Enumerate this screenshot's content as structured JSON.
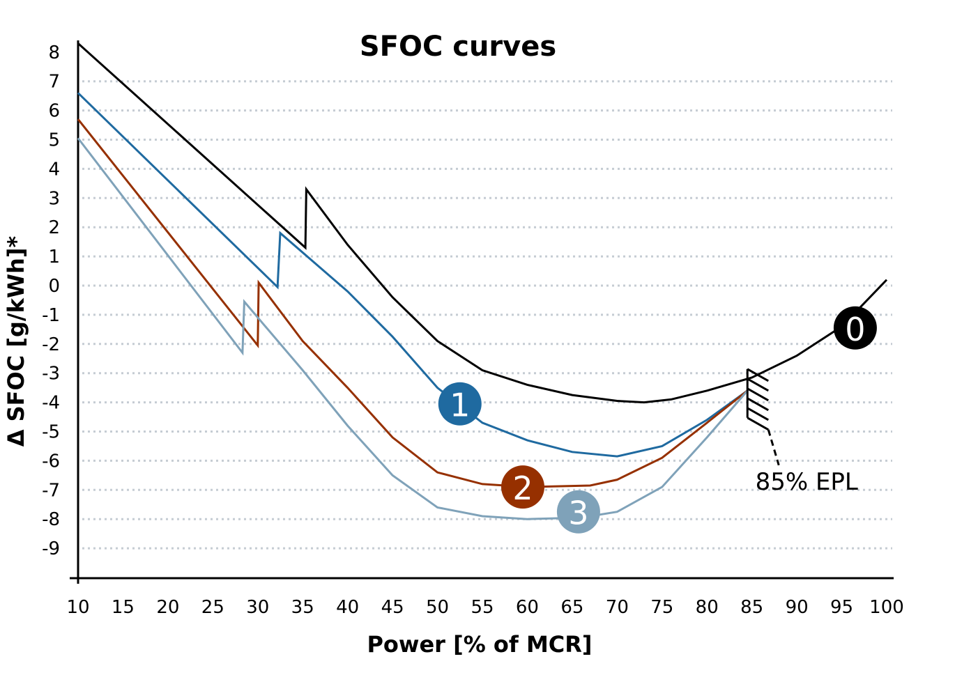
{
  "chart_data": {
    "type": "line",
    "title": "SFOC curves",
    "xlabel": "Power [% of MCR]",
    "ylabel": "Δ SFOC [g/kWh]*",
    "xlim": [
      10,
      100
    ],
    "ylim": [
      -10,
      8
    ],
    "x_ticks": [
      10,
      15,
      20,
      25,
      30,
      35,
      40,
      45,
      50,
      55,
      60,
      65,
      70,
      75,
      80,
      85,
      90,
      95,
      100
    ],
    "y_ticks": [
      8,
      7,
      6,
      5,
      4,
      3,
      2,
      1,
      0,
      -1,
      -2,
      -3,
      -4,
      -5,
      -6,
      -7,
      -8,
      -9
    ],
    "grid": "horizontal dotted",
    "series": [
      {
        "name": "0",
        "color": "#000000",
        "label_at": [
          96.5,
          -1.45
        ],
        "points": [
          [
            10,
            8.3
          ],
          [
            35.3,
            1.3
          ],
          [
            35.4,
            3.3
          ],
          [
            40,
            1.4
          ],
          [
            45,
            -0.4
          ],
          [
            50,
            -1.9
          ],
          [
            55,
            -2.9
          ],
          [
            60,
            -3.4
          ],
          [
            65,
            -3.75
          ],
          [
            70,
            -3.95
          ],
          [
            73,
            -4.0
          ],
          [
            76,
            -3.9
          ],
          [
            80,
            -3.6
          ],
          [
            85,
            -3.15
          ],
          [
            90,
            -2.4
          ],
          [
            95,
            -1.4
          ],
          [
            100,
            0.2
          ]
        ]
      },
      {
        "name": "1",
        "color": "#1f6aa0",
        "label_at": [
          52.5,
          -4.05
        ],
        "points": [
          [
            10,
            6.6
          ],
          [
            32.2,
            -0.05
          ],
          [
            32.5,
            1.8
          ],
          [
            40,
            -0.2
          ],
          [
            45,
            -1.75
          ],
          [
            50,
            -3.5
          ],
          [
            55,
            -4.7
          ],
          [
            60,
            -5.3
          ],
          [
            65,
            -5.7
          ],
          [
            70,
            -5.85
          ],
          [
            75,
            -5.5
          ],
          [
            80,
            -4.6
          ],
          [
            84.5,
            -3.6
          ]
        ]
      },
      {
        "name": "2",
        "color": "#963000",
        "label_at": [
          59.5,
          -6.9
        ],
        "points": [
          [
            10,
            5.7
          ],
          [
            30,
            -2.05
          ],
          [
            30.1,
            0.1
          ],
          [
            35,
            -1.9
          ],
          [
            40,
            -3.5
          ],
          [
            45,
            -5.2
          ],
          [
            50,
            -6.4
          ],
          [
            55,
            -6.8
          ],
          [
            60,
            -6.9
          ],
          [
            67,
            -6.85
          ],
          [
            70,
            -6.65
          ],
          [
            75,
            -5.9
          ],
          [
            80,
            -4.7
          ],
          [
            84.5,
            -3.6
          ]
        ]
      },
      {
        "name": "3",
        "color": "#7fa2b9",
        "label_at": [
          65.7,
          -7.75
        ],
        "points": [
          [
            10,
            5.05
          ],
          [
            28.3,
            -2.3
          ],
          [
            28.5,
            -0.55
          ],
          [
            35,
            -2.9
          ],
          [
            40,
            -4.8
          ],
          [
            45,
            -6.5
          ],
          [
            50,
            -7.6
          ],
          [
            55,
            -7.9
          ],
          [
            60,
            -8.0
          ],
          [
            66,
            -7.95
          ],
          [
            70,
            -7.75
          ],
          [
            75,
            -6.9
          ],
          [
            80,
            -5.2
          ],
          [
            84.5,
            -3.6
          ]
        ]
      }
    ],
    "annotations": [
      {
        "text": "85% EPL",
        "x": 84.5
      }
    ]
  }
}
